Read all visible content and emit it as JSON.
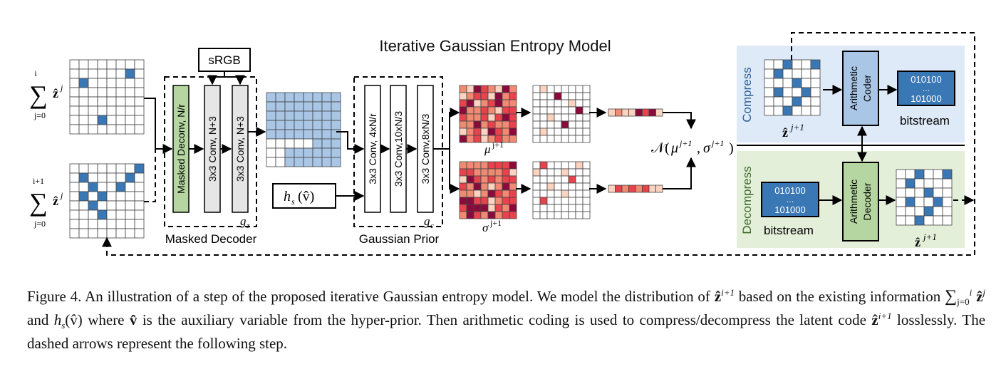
{
  "figure": {
    "title": "Iterative Gaussian Entropy Model",
    "left_sums": {
      "top": {
        "upper": "i",
        "lower": "j=0",
        "symbol": "ẑ",
        "superscript": "j"
      },
      "bottom": {
        "upper": "i+1",
        "lower": "j=0",
        "symbol": "ẑ",
        "superscript": "j"
      }
    },
    "srgb_label": "sRGB",
    "masked_decoder": {
      "caption": "Masked Decoder",
      "layers": [
        "Masked Deconv, N/r",
        "3x3 Conv, N+3",
        "3x3 Conv, N+3"
      ],
      "subscript_label": "g",
      "subscript_index": "z"
    },
    "hyper_input": {
      "func": "h",
      "sub": "s",
      "arg": "(v̂)"
    },
    "gaussian_prior": {
      "caption": "Gaussian Prior",
      "layers": [
        "3x3 Conv, 4xN/r",
        "3x3 Conv,10xN/3",
        "3x3 Conv,8xN/3"
      ],
      "subscript_label": "g",
      "subscript_index": "c"
    },
    "mu_label": {
      "symbol": "μ",
      "sup": "j+1"
    },
    "sigma_label": {
      "symbol": "σ",
      "sup": "j+1"
    },
    "normal_label": {
      "prefix": "𝒩(",
      "mu": "μ",
      "mu_sup": "j+1",
      "sep": ", ",
      "sigma": "σ",
      "sigma_sup": "j+1",
      "suffix": ")"
    },
    "compress": {
      "side_label": "Compress",
      "coder": [
        "Arithmetic",
        "Coder"
      ],
      "bits": [
        "010100",
        "…",
        "101000"
      ],
      "bitstream_label": "bitstream",
      "z_label": {
        "symbol": "ẑ",
        "sup": "j+1"
      }
    },
    "decompress": {
      "side_label": "Decompress",
      "coder": [
        "Arithmetic",
        "Decoder"
      ],
      "bits": [
        "010100",
        "…",
        "101000"
      ],
      "bitstream_label": "bitstream",
      "z_label": {
        "symbol": "ẑ",
        "sup": "j+1"
      }
    },
    "colors": {
      "cell_blue": "#3a78b5",
      "light_blue": "#a9c6e6",
      "compress_bg": "#deeaf7",
      "decompress_bg": "#e4efd9",
      "green_layer": "#b5d6a0",
      "grey_layer": "#e5e5e5",
      "heat_dark": "#8a0a3c",
      "heat_red": "#e8434d",
      "heat_mid": "#f08a72",
      "heat_light": "#fbd3c0"
    }
  },
  "caption": {
    "figure_label": "Figure 4.",
    "part1": "An illustration of a step of the proposed iterative Gaussian entropy model. We model the distribution of",
    "z_next": "ẑ",
    "z_next_sup": "i+1",
    "part2": "based on the existing information",
    "sum_sym": "∑",
    "sum_upper": "i",
    "sum_lower": "j=0",
    "z_j": "ẑ",
    "z_j_sup": "j",
    "and_word": "and",
    "hs": "h",
    "hs_sub": "s",
    "hs_arg": "(v̂)",
    "part3": "where",
    "v_hat": "v̂",
    "part4": "is the auxiliary variable from the hyper-prior. Then arithmetic coding is used to compress/decompress the latent code",
    "z_code": "ẑ",
    "z_code_sup": "i+1",
    "part5": "losslessly. The dashed arrows represent the following step."
  }
}
